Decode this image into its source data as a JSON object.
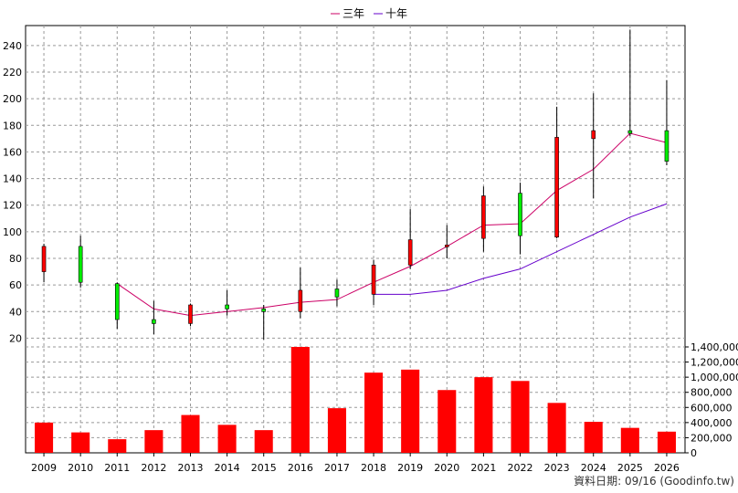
{
  "legend": [
    {
      "label": "三年",
      "color": "#cc0066"
    },
    {
      "label": "十年",
      "color": "#6600cc"
    }
  ],
  "footer": "資料日期: 09/16 (Goodinfo.tw)",
  "chart_data": {
    "type": "candlestick+line+bar",
    "categories": [
      "2009",
      "2010",
      "2011",
      "2012",
      "2013",
      "2014",
      "2015",
      "2016",
      "2017",
      "2018",
      "2019",
      "2020",
      "2021",
      "2022",
      "2023",
      "2024",
      "2025",
      "2026"
    ],
    "price_axis": {
      "ticks": [
        20,
        40,
        60,
        80,
        100,
        120,
        140,
        160,
        180,
        200,
        220,
        240
      ],
      "range": [
        10,
        255
      ]
    },
    "volume_axis": {
      "ticks": [
        "0",
        "200,000",
        "400,000",
        "600,000",
        "800,000",
        "1,000,000",
        "1,200,000",
        "1,400,000"
      ],
      "values": [
        0,
        200000,
        400000,
        600000,
        800000,
        1000000,
        1200000,
        1400000
      ],
      "range": [
        0,
        1400000
      ]
    },
    "candles": [
      {
        "open": 70,
        "close": 89,
        "high": 91,
        "low": 62,
        "color": "red"
      },
      {
        "open": 89,
        "close": 62,
        "high": 97,
        "low": 58,
        "color": "green"
      },
      {
        "open": 61,
        "close": 34,
        "high": 62,
        "low": 27,
        "color": "green"
      },
      {
        "open": 34,
        "close": 31,
        "high": 48,
        "low": 23,
        "color": "green"
      },
      {
        "open": 31,
        "close": 45,
        "high": 46,
        "low": 29,
        "color": "red"
      },
      {
        "open": 45,
        "close": 42,
        "high": 56,
        "low": 37,
        "color": "green"
      },
      {
        "open": 42,
        "close": 40,
        "high": 45,
        "low": 19,
        "color": "green"
      },
      {
        "open": 40,
        "close": 56,
        "high": 73,
        "low": 35,
        "color": "red"
      },
      {
        "open": 57,
        "close": 51,
        "high": 64,
        "low": 44,
        "color": "green"
      },
      {
        "open": 53,
        "close": 75,
        "high": 79,
        "low": 45,
        "color": "red"
      },
      {
        "open": 75,
        "close": 94,
        "high": 117,
        "low": 72,
        "color": "red"
      },
      {
        "open": 90,
        "close": 90,
        "high": 105,
        "low": 80,
        "color": "red"
      },
      {
        "open": 95,
        "close": 127,
        "high": 134,
        "low": 85,
        "color": "red"
      },
      {
        "open": 129,
        "close": 97,
        "high": 137,
        "low": 83,
        "color": "green"
      },
      {
        "open": 96,
        "close": 171,
        "high": 194,
        "low": 95,
        "color": "red"
      },
      {
        "open": 170,
        "close": 176,
        "high": 204,
        "low": 125,
        "color": "red"
      },
      {
        "open": 174,
        "close": 176,
        "high": 252,
        "low": 172,
        "color": "green"
      },
      {
        "open": 176,
        "close": 153,
        "high": 214,
        "low": 150,
        "color": "green"
      }
    ],
    "series": [
      {
        "name": "三年",
        "values": [
          null,
          null,
          61,
          42,
          37,
          40,
          43,
          47,
          49,
          62,
          74,
          89,
          105,
          106,
          131,
          147,
          174,
          167
        ]
      },
      {
        "name": "十年",
        "values": [
          null,
          null,
          null,
          null,
          null,
          null,
          null,
          null,
          null,
          53,
          53,
          56,
          65,
          72,
          85,
          98,
          111,
          121
        ]
      }
    ],
    "volume": [
      400000,
      270000,
      180000,
      300000,
      500000,
      370000,
      300000,
      1400000,
      590000,
      1060000,
      1100000,
      830000,
      1000000,
      950000,
      660000,
      410000,
      330000,
      280000
    ]
  }
}
